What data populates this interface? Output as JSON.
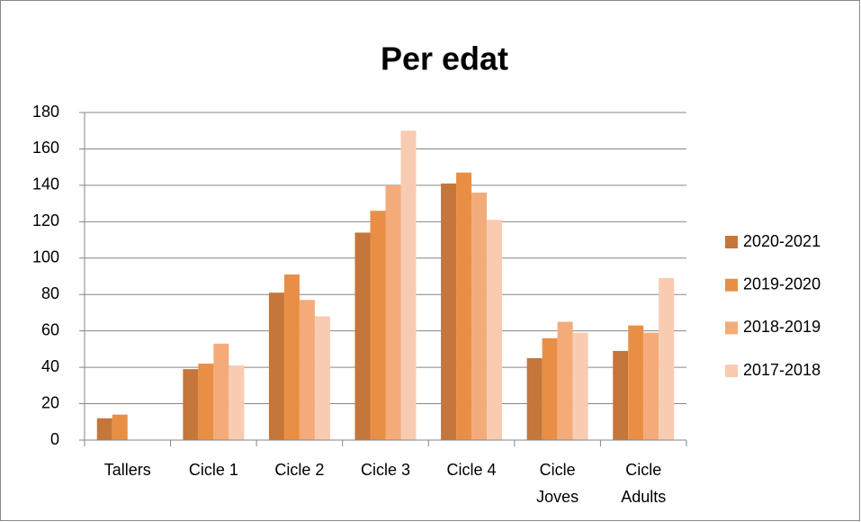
{
  "chart_data": {
    "type": "bar",
    "title": "Per edat",
    "categories": [
      "Tallers",
      "Cicle 1",
      "Cicle 2",
      "Cicle 3",
      "Cicle 4",
      "Cicle Joves",
      "Cicle Adults"
    ],
    "series": [
      {
        "name": "2020-2021",
        "color": "#c5763a",
        "values": [
          12,
          39,
          81,
          114,
          141,
          45,
          49
        ]
      },
      {
        "name": "2019-2020",
        "color": "#e98f45",
        "values": [
          14,
          42,
          91,
          126,
          147,
          56,
          63
        ]
      },
      {
        "name": "2018-2019",
        "color": "#f4ab7a",
        "values": [
          null,
          53,
          77,
          140,
          136,
          65,
          59
        ]
      },
      {
        "name": "2017-2018",
        "color": "#f9cbb0",
        "values": [
          null,
          41,
          68,
          170,
          121,
          59,
          89
        ]
      }
    ],
    "ylim": [
      0,
      180
    ],
    "yticks": [
      0,
      20,
      40,
      60,
      80,
      100,
      120,
      140,
      160,
      180
    ],
    "grid": true,
    "legend": "right"
  }
}
